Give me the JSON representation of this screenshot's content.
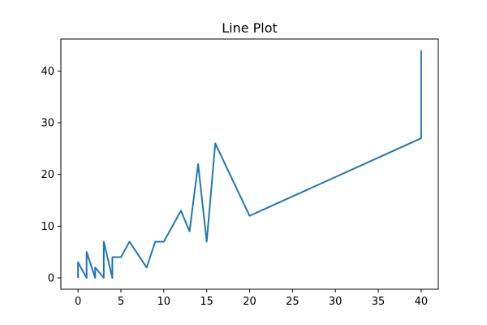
{
  "chart_data": {
    "type": "line",
    "title": "Line Plot",
    "xlabel": "",
    "ylabel": "",
    "xlim": [
      -2,
      42
    ],
    "ylim": [
      -2.2,
      46.2
    ],
    "xticks": [
      0,
      5,
      10,
      15,
      20,
      25,
      30,
      35,
      40
    ],
    "yticks": [
      0,
      10,
      20,
      30,
      40
    ],
    "grid": false,
    "legend": "none",
    "series": [
      {
        "color": "#1f77b4",
        "x": [
          0,
          0,
          1,
          1,
          2,
          2,
          3,
          3,
          4,
          4,
          5,
          6,
          8,
          9,
          10,
          12,
          13,
          14,
          15,
          16,
          20,
          40,
          40
        ],
        "y": [
          0,
          3,
          0,
          5,
          0,
          2,
          0,
          7,
          0,
          4,
          4,
          7,
          2,
          7,
          7,
          13,
          9,
          22,
          7,
          26,
          12,
          27,
          44
        ]
      }
    ]
  }
}
